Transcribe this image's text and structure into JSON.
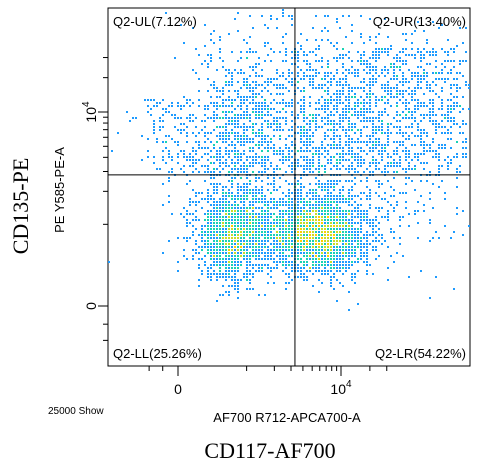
{
  "chart_data": {
    "type": "scatter",
    "subtype": "flow-cytometry-density-dot-plot",
    "xlabel": "AF700 R712-APCA700-A",
    "ylabel": "PE Y585-PE-A",
    "x_marker_label": "CD117-AF700",
    "y_marker_label": "CD135-PE",
    "event_count_label": "25000 Show",
    "x_ticks": [
      {
        "value": 0,
        "label": "0"
      },
      {
        "value": 10000,
        "label": "10^4"
      }
    ],
    "y_ticks": [
      {
        "value": 0,
        "label": "0"
      },
      {
        "value": 10000,
        "label": "10^4"
      }
    ],
    "x_tick_text": {
      "zero": "0",
      "base": "10",
      "exp": "4"
    },
    "y_tick_text": {
      "zero": "0",
      "base": "10",
      "exp": "4"
    },
    "gates": {
      "x_threshold": 3300,
      "y_threshold": 2800
    },
    "quadrants": [
      {
        "id": "UL",
        "label": "Q2-UL(7.12%)",
        "percent": 7.12
      },
      {
        "id": "UR",
        "label": "Q2-UR(13.40%)",
        "percent": 13.4
      },
      {
        "id": "LL",
        "label": "Q2-LL(25.26%)",
        "percent": 25.26
      },
      {
        "id": "LR",
        "label": "Q2-LR(54.22%)",
        "percent": 54.22
      }
    ],
    "populations": [
      {
        "name": "",
        "center": [
          5500,
          800
        ],
        "weight": 0.54
      },
      {
        "name": "",
        "center": [
          700,
          800
        ],
        "weight": 0.25
      },
      {
        "name": "",
        "center": [
          900,
          6000
        ],
        "weight": 0.07
      },
      {
        "name": "",
        "center": [
          9000,
          6500
        ],
        "weight": 0.14
      }
    ],
    "density_colors": [
      "#0000c8",
      "#1e9bff",
      "#19d2b4",
      "#c8dc28",
      "#ffcd00"
    ]
  },
  "colors": {
    "axis": "#000000",
    "background": "#ffffff"
  }
}
